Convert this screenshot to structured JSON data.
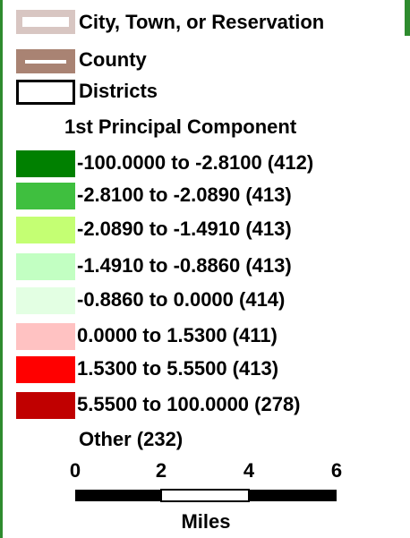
{
  "legend": {
    "layers": [
      {
        "label": "City, Town, or Reservation"
      },
      {
        "label": "County"
      },
      {
        "label": "Districts"
      }
    ],
    "classification": {
      "title": "1st Principal Component",
      "classes": [
        {
          "label": "-100.0000 to -2.8100 (412)",
          "color": "#008000"
        },
        {
          "label": "-2.8100 to -2.0890 (413)",
          "color": "#3fbf3f"
        },
        {
          "label": "-2.0890 to -1.4910 (413)",
          "color": "#c4ff73"
        },
        {
          "label": "-1.4910 to -0.8860 (413)",
          "color": "#c2ffc2"
        },
        {
          "label": "-0.8860 to 0.0000 (414)",
          "color": "#e3ffe3"
        },
        {
          "label": "0.0000 to 1.5300 (411)",
          "color": "#ffc2c2"
        },
        {
          "label": "1.5300 to 5.5500 (413)",
          "color": "#ff0000"
        },
        {
          "label": "5.5500 to 100.0000 (278)",
          "color": "#c00000"
        }
      ],
      "other": "Other (232)"
    },
    "scale": {
      "ticks": [
        "0",
        "2",
        "4",
        "6"
      ],
      "unit": "Miles"
    }
  }
}
